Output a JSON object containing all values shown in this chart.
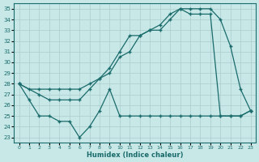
{
  "xlabel": "Humidex (Indice chaleur)",
  "xlim": [
    -0.5,
    23.5
  ],
  "ylim": [
    22.5,
    35.5
  ],
  "yticks": [
    23,
    24,
    25,
    26,
    27,
    28,
    29,
    30,
    31,
    32,
    33,
    34,
    35
  ],
  "xticks": [
    0,
    1,
    2,
    3,
    4,
    5,
    6,
    7,
    8,
    9,
    10,
    11,
    12,
    13,
    14,
    15,
    16,
    17,
    18,
    19,
    20,
    21,
    22,
    23
  ],
  "bg_color": "#c8e8e8",
  "line_color": "#1a6b6b",
  "grid_color": "#aacccc",
  "line1_x": [
    0,
    1,
    2,
    3,
    4,
    5,
    6,
    7,
    8,
    9,
    10,
    11,
    12,
    13,
    14,
    15,
    16,
    17,
    18,
    19,
    20,
    21,
    22,
    23
  ],
  "line1_y": [
    28.0,
    27.5,
    27.5,
    27.5,
    27.5,
    27.5,
    27.5,
    28.0,
    28.5,
    29.0,
    30.5,
    31.0,
    32.5,
    33.0,
    33.5,
    34.5,
    35.0,
    34.5,
    34.5,
    34.5,
    25.0,
    25.0,
    25.0,
    25.5
  ],
  "line2_x": [
    0,
    2,
    3,
    4,
    5,
    6,
    7,
    8,
    9,
    10,
    11,
    12,
    13,
    14,
    15,
    16,
    17,
    18,
    19,
    20,
    21,
    22,
    23
  ],
  "line2_y": [
    28.0,
    27.0,
    26.5,
    26.5,
    26.5,
    26.5,
    27.5,
    28.5,
    29.5,
    31.0,
    32.5,
    32.5,
    33.0,
    33.0,
    34.0,
    35.0,
    35.0,
    35.0,
    35.0,
    34.0,
    31.5,
    27.5,
    25.5
  ],
  "line3_x": [
    0,
    1,
    2,
    3,
    4,
    5,
    6,
    7,
    8,
    9,
    10,
    11,
    12,
    13,
    14,
    15,
    16,
    17,
    18,
    19,
    20,
    21,
    22,
    23
  ],
  "line3_y": [
    28.0,
    26.5,
    25.0,
    25.0,
    24.5,
    24.5,
    23.0,
    24.0,
    25.5,
    27.5,
    25.0,
    25.0,
    25.0,
    25.0,
    25.0,
    25.0,
    25.0,
    25.0,
    25.0,
    25.0,
    25.0,
    25.0,
    25.0,
    25.5
  ]
}
